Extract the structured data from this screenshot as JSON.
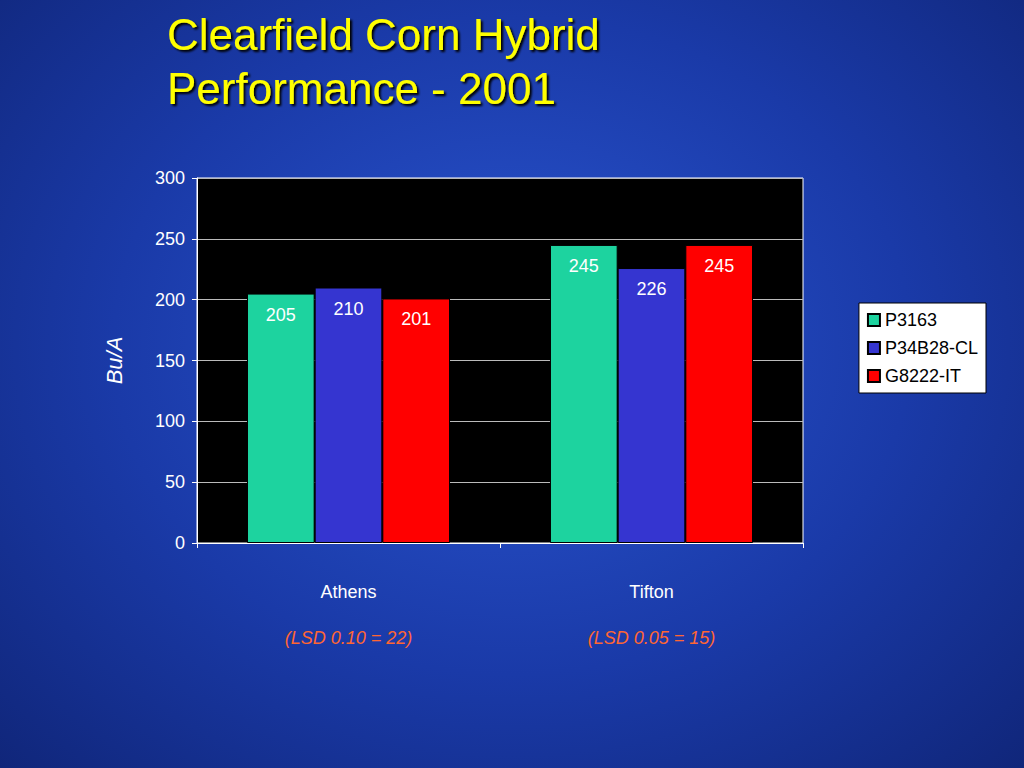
{
  "chart_data": {
    "type": "bar",
    "title": "Clearfield Corn Hybrid Performance - 2001",
    "y_label": "Bu/A",
    "categories": [
      "Athens",
      "Tifton"
    ],
    "annotations": [
      "(LSD 0.10 = 22)",
      "(LSD 0.05 = 15)"
    ],
    "series": [
      {
        "name": "P3163",
        "color": "#1dd39f",
        "values": [
          205,
          245
        ]
      },
      {
        "name": "P34B28-CL",
        "color": "#3535d0",
        "values": [
          210,
          226
        ]
      },
      {
        "name": "G8222-IT",
        "color": "#ff0000",
        "values": [
          201,
          245
        ]
      }
    ],
    "ylim": [
      0,
      300
    ],
    "yticks": [
      0,
      50,
      100,
      150,
      200,
      250,
      300
    ],
    "grid": true,
    "legend": "right",
    "data_labels": true
  }
}
